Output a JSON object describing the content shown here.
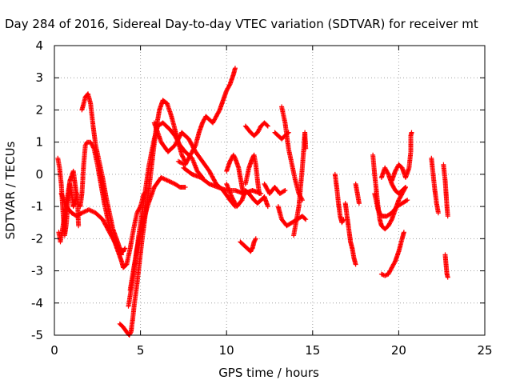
{
  "chart_data": {
    "type": "scatter",
    "title": "Day 284 of 2016, Sidereal Day-to-day VTEC variation (SDTVAR) for receiver mt",
    "xlabel": "GPS time / hours",
    "ylabel": "SDTVAR / TECUs",
    "xlim": [
      0,
      25
    ],
    "ylim": [
      -5,
      4
    ],
    "xticks": [
      0,
      5,
      10,
      15,
      20,
      25
    ],
    "yticks": [
      -5,
      -4,
      -3,
      -2,
      -1,
      0,
      1,
      2,
      3,
      4
    ],
    "grid": true,
    "legend": "none",
    "marker": "+",
    "color": "#ff0000",
    "tracks": [
      [
        [
          0.2,
          0.5
        ],
        [
          0.3,
          0.2
        ],
        [
          0.4,
          -0.3
        ],
        [
          0.5,
          -1.2
        ],
        [
          0.6,
          -1.9
        ],
        [
          0.7,
          -1.5
        ],
        [
          0.8,
          -0.7
        ],
        [
          0.9,
          -0.3
        ],
        [
          1.0,
          -0.6
        ],
        [
          1.1,
          -1.0
        ],
        [
          1.2,
          -0.9
        ],
        [
          1.3,
          -0.6
        ]
      ],
      [
        [
          0.25,
          -1.8
        ],
        [
          0.35,
          -2.1
        ],
        [
          0.5,
          -1.6
        ],
        [
          0.7,
          -0.9
        ],
        [
          0.9,
          -0.2
        ],
        [
          1.1,
          0.1
        ],
        [
          1.2,
          -0.3
        ],
        [
          1.35,
          -0.9
        ],
        [
          1.4,
          -1.6
        ]
      ],
      [
        [
          1.5,
          -1.0
        ],
        [
          1.6,
          -0.6
        ],
        [
          1.7,
          0.3
        ],
        [
          1.8,
          0.9
        ],
        [
          1.9,
          1.0
        ],
        [
          2.1,
          1.0
        ],
        [
          2.3,
          0.8
        ],
        [
          2.5,
          0.3
        ],
        [
          2.7,
          -0.3
        ],
        [
          2.9,
          -0.9
        ],
        [
          3.1,
          -1.4
        ],
        [
          3.3,
          -1.8
        ],
        [
          3.5,
          -2.1
        ],
        [
          3.7,
          -2.4
        ],
        [
          3.9,
          -2.7
        ],
        [
          4.0,
          -2.9
        ],
        [
          4.2,
          -2.8
        ],
        [
          4.4,
          -2.3
        ],
        [
          4.6,
          -1.7
        ],
        [
          4.8,
          -1.2
        ],
        [
          5.0,
          -1.0
        ],
        [
          5.2,
          -0.6
        ]
      ],
      [
        [
          0.4,
          -0.6
        ],
        [
          0.7,
          -1.0
        ],
        [
          1.0,
          -1.2
        ],
        [
          1.3,
          -1.3
        ],
        [
          1.6,
          -1.2
        ],
        [
          2.0,
          -1.1
        ],
        [
          2.4,
          -1.2
        ],
        [
          2.8,
          -1.4
        ],
        [
          3.2,
          -1.8
        ],
        [
          3.6,
          -2.2
        ],
        [
          3.9,
          -2.5
        ]
      ],
      [
        [
          1.6,
          2.0
        ],
        [
          1.8,
          2.4
        ],
        [
          1.95,
          2.5
        ],
        [
          2.1,
          2.2
        ],
        [
          2.25,
          1.5
        ],
        [
          2.4,
          0.9
        ],
        [
          2.6,
          0.4
        ],
        [
          2.8,
          -0.1
        ],
        [
          3.0,
          -0.7
        ],
        [
          3.2,
          -1.2
        ],
        [
          3.4,
          -1.7
        ],
        [
          3.6,
          -2.0
        ],
        [
          3.8,
          -2.3
        ],
        [
          4.0,
          -2.4
        ],
        [
          4.1,
          -2.3
        ]
      ],
      [
        [
          3.8,
          -4.65
        ],
        [
          4.0,
          -4.75
        ],
        [
          4.2,
          -4.9
        ],
        [
          4.35,
          -5.0
        ],
        [
          4.45,
          -4.9
        ],
        [
          4.55,
          -4.5
        ],
        [
          4.65,
          -4.0
        ],
        [
          4.8,
          -3.4
        ],
        [
          4.95,
          -2.7
        ],
        [
          5.1,
          -2.0
        ],
        [
          5.3,
          -1.2
        ],
        [
          5.5,
          -0.4
        ],
        [
          5.7,
          0.5
        ],
        [
          5.9,
          1.4
        ],
        [
          6.1,
          2.0
        ],
        [
          6.3,
          2.3
        ],
        [
          6.55,
          2.2
        ],
        [
          6.8,
          1.8
        ],
        [
          7.0,
          1.4
        ],
        [
          7.2,
          1.0
        ],
        [
          7.4,
          0.6
        ],
        [
          7.6,
          0.4
        ]
      ],
      [
        [
          4.3,
          -4.1
        ],
        [
          4.6,
          -3.1
        ],
        [
          4.9,
          -1.9
        ],
        [
          5.2,
          -0.8
        ],
        [
          5.5,
          0.3
        ],
        [
          5.8,
          1.1
        ],
        [
          6.0,
          1.5
        ],
        [
          6.3,
          1.6
        ],
        [
          6.7,
          1.4
        ],
        [
          7.0,
          1.2
        ],
        [
          7.3,
          0.9
        ],
        [
          7.6,
          0.7
        ],
        [
          8.0,
          0.5
        ],
        [
          8.3,
          0.1
        ],
        [
          8.6,
          -0.1
        ]
      ],
      [
        [
          4.4,
          -3.6
        ],
        [
          4.8,
          -2.3
        ],
        [
          5.1,
          -1.6
        ],
        [
          5.4,
          -1.0
        ],
        [
          5.8,
          -0.4
        ],
        [
          6.2,
          -0.1
        ],
        [
          6.6,
          -0.2
        ],
        [
          7.0,
          -0.3
        ],
        [
          7.3,
          -0.4
        ],
        [
          7.6,
          -0.4
        ]
      ],
      [
        [
          5.8,
          1.6
        ],
        [
          6.2,
          1.0
        ],
        [
          6.6,
          0.7
        ],
        [
          7.0,
          0.9
        ],
        [
          7.4,
          1.3
        ],
        [
          7.8,
          1.1
        ],
        [
          8.2,
          0.7
        ],
        [
          8.6,
          0.4
        ],
        [
          9.0,
          0.1
        ],
        [
          9.4,
          -0.3
        ],
        [
          9.8,
          -0.5
        ],
        [
          10.2,
          -0.8
        ],
        [
          10.5,
          -1.0
        ]
      ],
      [
        [
          7.2,
          0.4
        ],
        [
          7.6,
          0.3
        ],
        [
          7.9,
          0.6
        ],
        [
          8.2,
          0.9
        ],
        [
          8.4,
          1.3
        ],
        [
          8.6,
          1.6
        ],
        [
          8.8,
          1.8
        ],
        [
          9.0,
          1.7
        ],
        [
          9.2,
          1.6
        ],
        [
          9.4,
          1.8
        ],
        [
          9.6,
          2.0
        ],
        [
          9.8,
          2.3
        ],
        [
          10.0,
          2.6
        ],
        [
          10.2,
          2.8
        ],
        [
          10.4,
          3.1
        ],
        [
          10.5,
          3.3
        ]
      ],
      [
        [
          7.5,
          0.2
        ],
        [
          8.0,
          0.0
        ],
        [
          8.5,
          -0.1
        ],
        [
          9.0,
          -0.3
        ],
        [
          9.5,
          -0.4
        ],
        [
          10.0,
          -0.5
        ],
        [
          10.5,
          -0.5
        ],
        [
          11.0,
          -0.6
        ],
        [
          11.5,
          -0.5
        ],
        [
          12.0,
          -0.6
        ]
      ],
      [
        [
          10.0,
          -0.3
        ],
        [
          10.3,
          -0.7
        ],
        [
          10.6,
          -1.0
        ],
        [
          10.9,
          -0.8
        ],
        [
          11.1,
          -0.5
        ],
        [
          11.3,
          -0.6
        ],
        [
          11.6,
          -0.8
        ],
        [
          11.8,
          -0.9
        ],
        [
          12.0,
          -0.8
        ],
        [
          12.2,
          -0.7
        ],
        [
          12.4,
          -1.0
        ]
      ],
      [
        [
          10.0,
          0.1
        ],
        [
          10.2,
          0.4
        ],
        [
          10.4,
          0.6
        ],
        [
          10.5,
          0.5
        ],
        [
          10.7,
          0.2
        ],
        [
          10.8,
          -0.1
        ],
        [
          10.9,
          -0.4
        ],
        [
          11.0,
          -0.6
        ]
      ],
      [
        [
          10.8,
          -2.1
        ],
        [
          11.0,
          -2.2
        ],
        [
          11.2,
          -2.3
        ],
        [
          11.4,
          -2.4
        ],
        [
          11.5,
          -2.3
        ],
        [
          11.6,
          -2.1
        ],
        [
          11.7,
          -2.0
        ]
      ],
      [
        [
          11.1,
          1.5
        ],
        [
          11.4,
          1.3
        ],
        [
          11.6,
          1.2
        ],
        [
          11.8,
          1.3
        ],
        [
          12.0,
          1.5
        ],
        [
          12.2,
          1.6
        ],
        [
          12.4,
          1.5
        ]
      ],
      [
        [
          11.1,
          -0.3
        ],
        [
          11.3,
          0.2
        ],
        [
          11.5,
          0.5
        ],
        [
          11.6,
          0.6
        ],
        [
          11.7,
          0.3
        ],
        [
          11.8,
          -0.2
        ],
        [
          11.9,
          -0.6
        ]
      ],
      [
        [
          12.2,
          -0.3
        ],
        [
          12.5,
          -0.6
        ],
        [
          12.8,
          -0.4
        ],
        [
          13.1,
          -0.6
        ],
        [
          13.4,
          -0.5
        ]
      ],
      [
        [
          12.8,
          1.3
        ],
        [
          13.0,
          1.2
        ],
        [
          13.2,
          1.1
        ],
        [
          13.4,
          1.2
        ],
        [
          13.6,
          1.3
        ]
      ],
      [
        [
          13.2,
          2.1
        ],
        [
          13.4,
          1.6
        ],
        [
          13.6,
          0.8
        ],
        [
          13.8,
          0.3
        ],
        [
          14.0,
          -0.2
        ],
        [
          14.2,
          -0.6
        ],
        [
          14.4,
          -0.8
        ]
      ],
      [
        [
          13.0,
          -1.0
        ],
        [
          13.2,
          -1.4
        ],
        [
          13.5,
          -1.6
        ],
        [
          13.8,
          -1.5
        ],
        [
          14.1,
          -1.4
        ],
        [
          14.4,
          -1.3
        ],
        [
          14.6,
          -1.4
        ]
      ],
      [
        [
          13.9,
          -1.9
        ],
        [
          14.0,
          -1.6
        ],
        [
          14.2,
          -1.0
        ],
        [
          14.4,
          0.2
        ],
        [
          14.5,
          0.9
        ],
        [
          14.55,
          1.3
        ],
        [
          14.6,
          0.8
        ]
      ],
      [
        [
          16.3,
          0.0
        ],
        [
          16.4,
          -0.4
        ],
        [
          16.5,
          -0.9
        ],
        [
          16.6,
          -1.3
        ],
        [
          16.7,
          -1.5
        ],
        [
          16.8,
          -1.4
        ]
      ],
      [
        [
          16.9,
          -0.9
        ],
        [
          17.0,
          -1.3
        ],
        [
          17.1,
          -1.7
        ],
        [
          17.2,
          -2.1
        ],
        [
          17.3,
          -2.3
        ],
        [
          17.4,
          -2.6
        ],
        [
          17.5,
          -2.8
        ]
      ],
      [
        [
          17.5,
          -0.3
        ],
        [
          17.6,
          -0.6
        ],
        [
          17.7,
          -0.9
        ]
      ],
      [
        [
          18.5,
          0.6
        ],
        [
          18.6,
          0.0
        ],
        [
          18.7,
          -0.5
        ],
        [
          18.8,
          -1.0
        ],
        [
          18.9,
          -1.4
        ],
        [
          19.0,
          -1.6
        ],
        [
          19.2,
          -1.7
        ],
        [
          19.4,
          -1.6
        ],
        [
          19.6,
          -1.4
        ],
        [
          19.8,
          -1.1
        ],
        [
          20.0,
          -0.8
        ],
        [
          20.2,
          -0.6
        ],
        [
          20.4,
          -0.4
        ]
      ],
      [
        [
          18.6,
          -0.6
        ],
        [
          18.8,
          -1.1
        ],
        [
          19.0,
          -1.3
        ],
        [
          19.3,
          -1.3
        ],
        [
          19.6,
          -1.2
        ],
        [
          19.9,
          -1.0
        ],
        [
          20.2,
          -0.9
        ],
        [
          20.5,
          -0.8
        ]
      ],
      [
        [
          19.0,
          -0.1
        ],
        [
          19.2,
          0.2
        ],
        [
          19.4,
          0.0
        ],
        [
          19.6,
          -0.3
        ],
        [
          19.8,
          -0.5
        ],
        [
          20.0,
          -0.6
        ],
        [
          20.2,
          -0.5
        ],
        [
          20.4,
          -0.4
        ]
      ],
      [
        [
          19.0,
          -3.1
        ],
        [
          19.2,
          -3.15
        ],
        [
          19.4,
          -3.1
        ],
        [
          19.6,
          -2.9
        ],
        [
          19.8,
          -2.7
        ],
        [
          20.0,
          -2.4
        ],
        [
          20.2,
          -2.0
        ],
        [
          20.3,
          -1.8
        ]
      ],
      [
        [
          19.6,
          -0.2
        ],
        [
          19.8,
          0.1
        ],
        [
          20.0,
          0.3
        ],
        [
          20.2,
          0.2
        ],
        [
          20.4,
          -0.1
        ],
        [
          20.6,
          0.2
        ],
        [
          20.7,
          0.7
        ],
        [
          20.7,
          1.2
        ],
        [
          20.75,
          1.3
        ]
      ],
      [
        [
          21.9,
          0.5
        ],
        [
          22.0,
          0.0
        ],
        [
          22.1,
          -0.5
        ],
        [
          22.2,
          -0.9
        ],
        [
          22.3,
          -1.2
        ]
      ],
      [
        [
          22.6,
          0.3
        ],
        [
          22.7,
          -0.2
        ],
        [
          22.75,
          -0.6
        ],
        [
          22.8,
          -1.0
        ],
        [
          22.85,
          -1.3
        ]
      ],
      [
        [
          22.7,
          -2.5
        ],
        [
          22.75,
          -2.8
        ],
        [
          22.8,
          -3.1
        ],
        [
          22.85,
          -3.2
        ]
      ]
    ]
  }
}
